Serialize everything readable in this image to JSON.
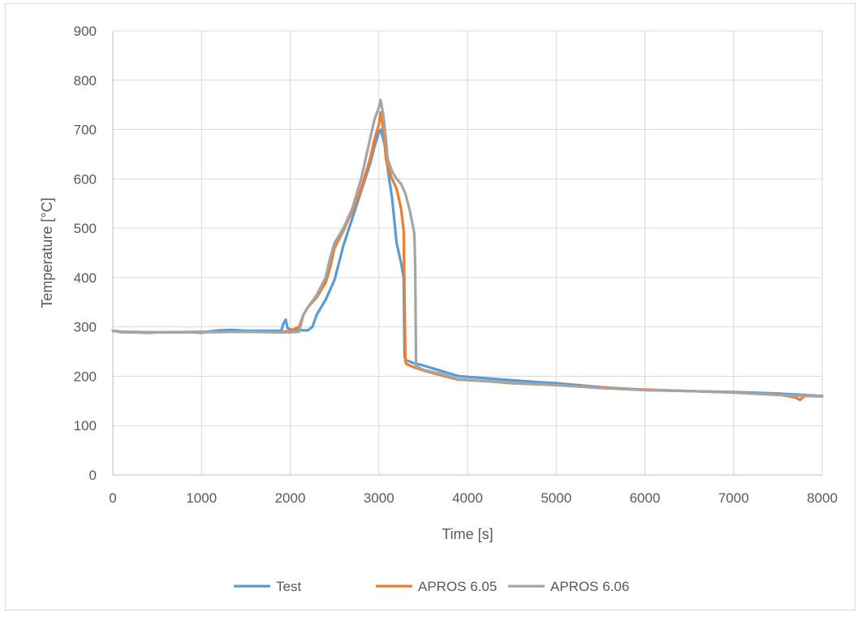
{
  "chart_data": {
    "type": "line",
    "title": "",
    "xlabel": "Time [s]",
    "ylabel": "Temperature  [°C]",
    "xlim": [
      0,
      8000
    ],
    "ylim": [
      0,
      900
    ],
    "x_ticks": [
      0,
      1000,
      2000,
      3000,
      4000,
      5000,
      6000,
      7000,
      8000
    ],
    "y_ticks": [
      0,
      100,
      200,
      300,
      400,
      500,
      600,
      700,
      800,
      900
    ],
    "grid": true,
    "legend_position": "bottom",
    "series": [
      {
        "name": "Test",
        "color": "#5b9bd5",
        "x": [
          0,
          100,
          500,
          900,
          1000,
          1100,
          1200,
          1350,
          1500,
          1700,
          1900,
          1920,
          1950,
          1970,
          2000,
          2100,
          2200,
          2250,
          2300,
          2400,
          2500,
          2600,
          2700,
          2800,
          2900,
          2950,
          3000,
          3020,
          3050,
          3080,
          3100,
          3150,
          3200,
          3250,
          3280,
          3290,
          3300,
          3400,
          3500,
          3700,
          3900,
          4200,
          4500,
          4800,
          5000,
          5500,
          6000,
          6500,
          7000,
          7500,
          7800,
          8000
        ],
        "values": [
          292,
          290,
          289,
          289,
          288,
          291,
          293,
          294,
          292,
          292,
          292,
          305,
          315,
          298,
          295,
          293,
          293,
          300,
          325,
          355,
          395,
          465,
          520,
          575,
          630,
          665,
          695,
          700,
          680,
          660,
          620,
          560,
          470,
          430,
          400,
          240,
          233,
          226,
          222,
          211,
          200,
          196,
          192,
          188,
          186,
          178,
          172,
          170,
          168,
          165,
          162,
          160
        ]
      },
      {
        "name": "APROS 6.05",
        "color": "#ed7d31",
        "x": [
          0,
          100,
          400,
          500,
          1000,
          1500,
          1900,
          2000,
          2100,
          2150,
          2200,
          2300,
          2400,
          2450,
          2500,
          2600,
          2700,
          2800,
          2900,
          2950,
          3000,
          3020,
          3050,
          3080,
          3100,
          3150,
          3200,
          3250,
          3280,
          3300,
          3310,
          3400,
          3500,
          3700,
          3900,
          4200,
          4500,
          5000,
          5500,
          6000,
          6500,
          7000,
          7500,
          7700,
          7750,
          7800,
          8000
        ],
        "values": [
          292,
          290,
          288,
          289,
          290,
          290,
          290,
          292,
          300,
          325,
          340,
          360,
          390,
          420,
          460,
          495,
          535,
          580,
          640,
          680,
          710,
          735,
          700,
          640,
          625,
          600,
          580,
          540,
          495,
          230,
          225,
          218,
          212,
          202,
          193,
          190,
          186,
          182,
          177,
          173,
          170,
          167,
          163,
          157,
          152,
          160,
          160
        ]
      },
      {
        "name": "APROS 6.06",
        "color": "#a5a5a5",
        "x": [
          0,
          100,
          500,
          1000,
          1500,
          1900,
          2000,
          2100,
          2150,
          2200,
          2300,
          2400,
          2450,
          2500,
          2600,
          2700,
          2800,
          2900,
          2950,
          3000,
          3020,
          3050,
          3080,
          3100,
          3150,
          3200,
          3250,
          3300,
          3350,
          3400,
          3410,
          3420,
          3500,
          3700,
          3900,
          4200,
          4500,
          5000,
          5500,
          6000,
          6500,
          7000,
          7500,
          8000
        ],
        "values": [
          292,
          289,
          289,
          289,
          290,
          289,
          289,
          290,
          325,
          340,
          365,
          400,
          440,
          470,
          500,
          540,
          600,
          680,
          720,
          745,
          760,
          730,
          680,
          640,
          615,
          600,
          590,
          570,
          535,
          490,
          430,
          220,
          213,
          205,
          194,
          190,
          187,
          182,
          176,
          172,
          170,
          167,
          162,
          159
        ]
      }
    ]
  }
}
